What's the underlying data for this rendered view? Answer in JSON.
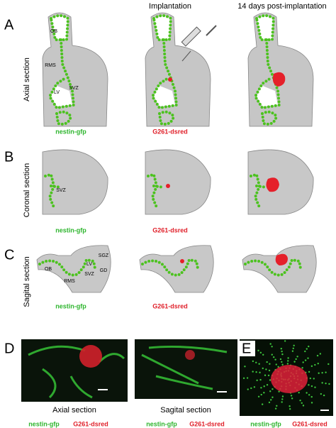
{
  "header": {
    "columns": [
      "Implantation",
      "14 days post-implantation"
    ]
  },
  "rows": [
    {
      "letter": "A",
      "label": "Axial section",
      "regions": [
        "OB",
        "RMS",
        "SVZ",
        "LV"
      ],
      "captions": [
        "nestin-gfp",
        "G261-dsred"
      ]
    },
    {
      "letter": "B",
      "label": "Coronal section",
      "regions": [
        "SVZ"
      ],
      "captions": [
        "nestin-gfp",
        "G261-dsred"
      ]
    },
    {
      "letter": "C",
      "label": "Sagital section",
      "regions": [
        "SGZ",
        "OB",
        "LV",
        "SVZ",
        "GD",
        "RMS"
      ],
      "captions": [
        "nestin-gfp",
        "G261-dsred"
      ]
    }
  ],
  "panel_d": {
    "letter": "D",
    "images": [
      {
        "caption": "Axial section",
        "legend": [
          "nestin-gfp",
          "G261-dsred"
        ]
      },
      {
        "caption": "Sagital section",
        "legend": [
          "nestin-gfp",
          "G261-dsred"
        ]
      }
    ]
  },
  "panel_e": {
    "letter": "E",
    "legend": [
      "nestin-gfp",
      "G261-dsred"
    ]
  }
}
